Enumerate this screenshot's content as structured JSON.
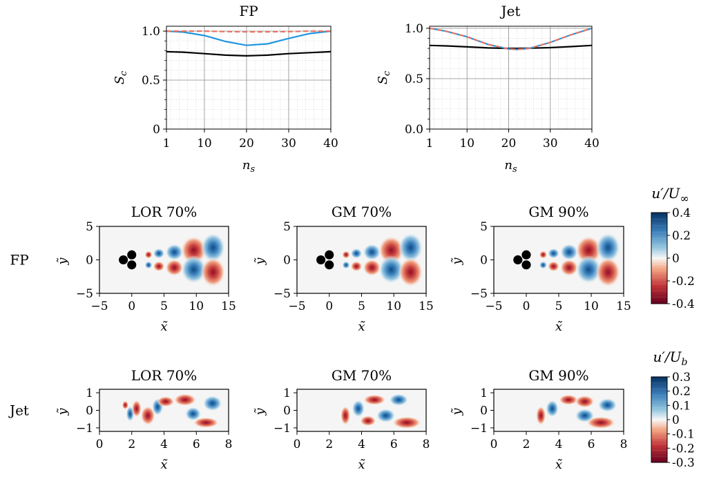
{
  "chart_data": [
    {
      "type": "line",
      "title": "FP",
      "xlabel": "n_s",
      "ylabel": "S_c",
      "xlim": [
        1,
        40
      ],
      "ylim": [
        0,
        1.05
      ],
      "xticks": [
        "1",
        "10",
        "20",
        "30",
        "40"
      ],
      "yticks": [
        "0",
        "0.5",
        "1.0"
      ],
      "grid": "major and minor",
      "x": [
        1,
        5,
        10,
        15,
        20,
        25,
        30,
        35,
        40
      ],
      "series": [
        {
          "color": "#000000",
          "style": "solid",
          "values": [
            0.79,
            0.785,
            0.77,
            0.755,
            0.748,
            0.755,
            0.77,
            0.78,
            0.79
          ]
        },
        {
          "color": "#1f96e0",
          "style": "solid",
          "values": [
            1.0,
            0.99,
            0.955,
            0.895,
            0.855,
            0.87,
            0.925,
            0.975,
            1.0
          ]
        },
        {
          "color": "#e8735f",
          "style": "dashed",
          "values": [
            1.0,
            1.0,
            1.0,
            0.995,
            0.993,
            0.993,
            0.995,
            1.0,
            1.0
          ]
        }
      ]
    },
    {
      "type": "line",
      "title": "Jet",
      "xlabel": "n_s",
      "ylabel": "S_c",
      "xlim": [
        1,
        40
      ],
      "ylim": [
        0,
        1.02
      ],
      "xticks": [
        "1",
        "10",
        "20",
        "30",
        "40"
      ],
      "yticks": [
        "0.0",
        "0.5",
        "1.0"
      ],
      "grid": "major and minor",
      "x": [
        1,
        5,
        10,
        15,
        20,
        22,
        25,
        30,
        35,
        40
      ],
      "series": [
        {
          "color": "#000000",
          "style": "solid",
          "values": [
            0.83,
            0.825,
            0.815,
            0.805,
            0.8,
            0.8,
            0.802,
            0.808,
            0.818,
            0.83
          ]
        },
        {
          "color": "#1f96e0",
          "style": "solid",
          "values": [
            1.0,
            0.97,
            0.915,
            0.84,
            0.795,
            0.79,
            0.8,
            0.86,
            0.935,
            1.0
          ]
        },
        {
          "color": "#e8735f",
          "style": "dashed",
          "values": [
            1.0,
            0.97,
            0.915,
            0.84,
            0.795,
            0.79,
            0.8,
            0.86,
            0.935,
            1.0
          ]
        }
      ]
    }
  ],
  "fields": {
    "rows": [
      {
        "label": "FP",
        "panels": [
          "LOR 70%",
          "GM 70%",
          "GM 90%"
        ],
        "xlabel": "x̃",
        "ylabel": "ỹ",
        "xticks": [
          "−5",
          "0",
          "5",
          "10",
          "15"
        ],
        "yticks": [
          "5",
          "0",
          "−5"
        ],
        "xlim": [
          -5,
          15
        ],
        "ylim": [
          -5,
          5
        ],
        "colorbar_label": "u′/U∞",
        "colorbar_ticks": [
          "0.4",
          "0.2",
          "0",
          "-0.2",
          "-0.4"
        ],
        "cylinders": true
      },
      {
        "label": "Jet",
        "panels": [
          "LOR 70%",
          "GM 70%",
          "GM 90%"
        ],
        "xlabel": "x̃",
        "ylabel": "ỹ",
        "xticks": [
          "0",
          "2",
          "4",
          "6",
          "8"
        ],
        "yticks": [
          "1",
          "0",
          "−1"
        ],
        "xlim": [
          0,
          8
        ],
        "ylim": [
          -1.2,
          1.2
        ],
        "colorbar_label": "u′/U_b",
        "colorbar_ticks": [
          "0.3",
          "0.2",
          "0.1",
          "0",
          "-0.1",
          "-0.2",
          "-0.3"
        ],
        "cylinders": false
      }
    ]
  },
  "colors": {
    "red_dark": "#67001f",
    "red": "#d6604d",
    "white": "#f7f7f7",
    "blue": "#4393c3",
    "blue_dark": "#053061"
  }
}
